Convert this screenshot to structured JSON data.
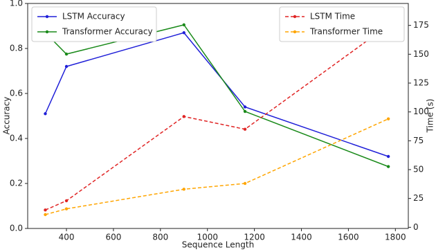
{
  "chart_data": {
    "type": "line",
    "x_label": "Sequence Length",
    "y_label": "Accuracy",
    "y2_label": "Time (s)",
    "x": [
      310,
      400,
      900,
      1160,
      1770
    ],
    "xlim": [
      235,
      1855
    ],
    "xticks": [
      400,
      600,
      800,
      1000,
      1200,
      1400,
      1600,
      1800
    ],
    "ylim": [
      0,
      1.0
    ],
    "yticks": [
      {
        "value": 0,
        "label": "0.0"
      },
      0.2,
      0.4,
      0.6,
      0.8,
      {
        "value": 1,
        "label": "1.0"
      }
    ],
    "y2lim": [
      -1,
      194
    ],
    "y2ticks": [
      0,
      25,
      50,
      75,
      100,
      125,
      150,
      175
    ],
    "legend_y": "upper left",
    "legend_y2": "upper right",
    "series": [
      {
        "name": "LSTM Accuracy",
        "color": "#1f1fd8",
        "dash": false,
        "axis": "y",
        "values": [
          0.51,
          0.72,
          0.87,
          0.54,
          0.32
        ]
      },
      {
        "name": "Transformer Accuracy",
        "color": "#1a8a1a",
        "dash": false,
        "axis": "y",
        "values": [
          0.87,
          0.775,
          0.905,
          0.52,
          0.275
        ]
      },
      {
        "name": "LSTM Time",
        "color": "#e02424",
        "dash": true,
        "axis": "y2",
        "values": [
          15,
          23,
          96,
          85,
          175
        ]
      },
      {
        "name": "Transformer Time",
        "color": "#ffa500",
        "dash": true,
        "axis": "y2",
        "values": [
          11,
          16,
          33,
          38,
          94
        ]
      }
    ]
  }
}
